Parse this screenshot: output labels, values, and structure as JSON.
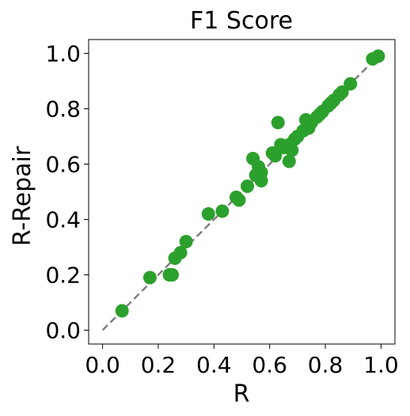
{
  "chart_data": {
    "type": "scatter",
    "title": "F1 Score",
    "xlabel": "R",
    "ylabel": "R-Repair",
    "xlim": [
      -0.05,
      1.05
    ],
    "ylim": [
      -0.05,
      1.05
    ],
    "xticks": [
      "0.0",
      "0.2",
      "0.4",
      "0.6",
      "0.8",
      "1.0"
    ],
    "yticks": [
      "0.0",
      "0.2",
      "0.4",
      "0.6",
      "0.8",
      "1.0"
    ],
    "grid": false,
    "marker_color": "#2ca02c",
    "reference_line": {
      "x": [
        0,
        1
      ],
      "y": [
        0,
        1
      ],
      "style": "dashed",
      "color": "#808080"
    },
    "points": [
      [
        0.07,
        0.07
      ],
      [
        0.17,
        0.19
      ],
      [
        0.24,
        0.2
      ],
      [
        0.25,
        0.2
      ],
      [
        0.26,
        0.26
      ],
      [
        0.28,
        0.28
      ],
      [
        0.3,
        0.32
      ],
      [
        0.38,
        0.42
      ],
      [
        0.43,
        0.43
      ],
      [
        0.48,
        0.48
      ],
      [
        0.49,
        0.47
      ],
      [
        0.52,
        0.52
      ],
      [
        0.54,
        0.62
      ],
      [
        0.55,
        0.56
      ],
      [
        0.56,
        0.59
      ],
      [
        0.57,
        0.54
      ],
      [
        0.57,
        0.57
      ],
      [
        0.61,
        0.64
      ],
      [
        0.62,
        0.63
      ],
      [
        0.63,
        0.75
      ],
      [
        0.64,
        0.67
      ],
      [
        0.65,
        0.66
      ],
      [
        0.67,
        0.61
      ],
      [
        0.67,
        0.67
      ],
      [
        0.68,
        0.65
      ],
      [
        0.69,
        0.69
      ],
      [
        0.7,
        0.7
      ],
      [
        0.72,
        0.72
      ],
      [
        0.73,
        0.76
      ],
      [
        0.74,
        0.73
      ],
      [
        0.75,
        0.75
      ],
      [
        0.77,
        0.77
      ],
      [
        0.78,
        0.78
      ],
      [
        0.79,
        0.79
      ],
      [
        0.81,
        0.81
      ],
      [
        0.82,
        0.82
      ],
      [
        0.83,
        0.83
      ],
      [
        0.85,
        0.85
      ],
      [
        0.86,
        0.86
      ],
      [
        0.89,
        0.89
      ],
      [
        0.97,
        0.98
      ],
      [
        0.99,
        0.99
      ]
    ]
  }
}
